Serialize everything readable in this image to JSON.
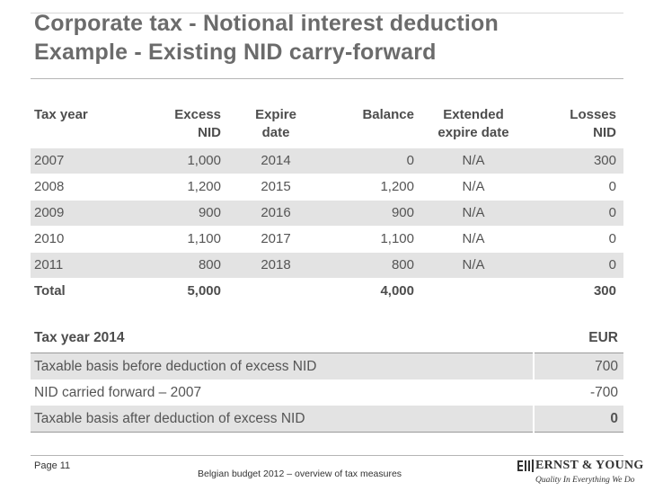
{
  "title": {
    "line1": "Corporate tax - Notional interest deduction",
    "line2": "Example - Existing NID carry-forward"
  },
  "nid_table": {
    "headers": {
      "tax_year": "Tax year",
      "excess_nid_1": "Excess",
      "excess_nid_2": "NID",
      "expire_date_1": "Expire",
      "expire_date_2": "date",
      "balance": "Balance",
      "extended_1": "Extended",
      "extended_2": "expire date",
      "losses_1": "Losses",
      "losses_2": "NID"
    },
    "rows": [
      {
        "year": "2007",
        "excess": "1,000",
        "expire": "2014",
        "balance": "0",
        "extended": "N/A",
        "losses": "300"
      },
      {
        "year": "2008",
        "excess": "1,200",
        "expire": "2015",
        "balance": "1,200",
        "extended": "N/A",
        "losses": "0"
      },
      {
        "year": "2009",
        "excess": "900",
        "expire": "2016",
        "balance": "900",
        "extended": "N/A",
        "losses": "0"
      },
      {
        "year": "2010",
        "excess": "1,100",
        "expire": "2017",
        "balance": "1,100",
        "extended": "N/A",
        "losses": "0"
      },
      {
        "year": "2011",
        "excess": "800",
        "expire": "2018",
        "balance": "800",
        "extended": "N/A",
        "losses": "0"
      }
    ],
    "total": {
      "label": "Total",
      "excess": "5,000",
      "expire": "",
      "balance": "4,000",
      "extended": "",
      "losses": "300"
    }
  },
  "calc_table": {
    "header_label": "Tax year 2014",
    "header_unit": "EUR",
    "rows": [
      {
        "label": "Taxable basis before deduction of excess NID",
        "amount": "700"
      },
      {
        "label": "NID carried forward – 2007",
        "amount": "-700"
      },
      {
        "label": "Taxable basis after deduction of excess NID",
        "amount": "0"
      }
    ]
  },
  "footer": {
    "page": "Page 11",
    "text": "Belgian budget 2012 – overview of tax measures",
    "logo_name": "ERNST & YOUNG",
    "logo_tagline": "Quality In Everything We Do"
  },
  "colors": {
    "title": "#6b6b6b",
    "row_shade": "#e3e3e3",
    "rule": "#9a9a9a"
  }
}
